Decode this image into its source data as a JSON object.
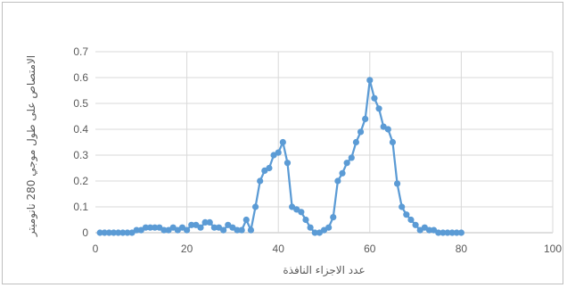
{
  "chart_data": {
    "type": "line",
    "title": "",
    "xlabel": "عدد الاجزاء النافذة",
    "ylabel": "الامتصاص على طول موجي 280 نانوميتر",
    "xlim": [
      0,
      100
    ],
    "ylim": [
      0,
      0.7
    ],
    "xticks": [
      "0",
      "20",
      "40",
      "60",
      "80",
      "100"
    ],
    "yticks": [
      "0",
      "0.1",
      "0.2",
      "0.3",
      "0.4",
      "0.5",
      "0.6",
      "0.7"
    ],
    "xtick_values": [
      0,
      20,
      40,
      60,
      80,
      100
    ],
    "ytick_values": [
      0,
      0.1,
      0.2,
      0.3,
      0.4,
      0.5,
      0.6,
      0.7
    ],
    "grid": true,
    "legend": "none",
    "series": [
      {
        "color": "#5b9bd5",
        "x": [
          1,
          2,
          3,
          4,
          5,
          6,
          7,
          8,
          9,
          10,
          11,
          12,
          13,
          14,
          15,
          16,
          17,
          18,
          19,
          20,
          21,
          22,
          23,
          24,
          25,
          26,
          27,
          28,
          29,
          30,
          31,
          32,
          33,
          34,
          35,
          36,
          37,
          38,
          39,
          40,
          41,
          42,
          43,
          44,
          45,
          46,
          47,
          48,
          49,
          50,
          51,
          52,
          53,
          54,
          55,
          56,
          57,
          58,
          59,
          60,
          61,
          62,
          63,
          64,
          65,
          66,
          67,
          68,
          69,
          70,
          71,
          72,
          73,
          74,
          75,
          76,
          77,
          78,
          79,
          80
        ],
        "y": [
          0,
          0,
          0,
          0,
          0,
          0,
          0,
          0,
          0.01,
          0.01,
          0.02,
          0.02,
          0.02,
          0.02,
          0.01,
          0.01,
          0.02,
          0.01,
          0.02,
          0.01,
          0.03,
          0.03,
          0.02,
          0.04,
          0.04,
          0.02,
          0.02,
          0.01,
          0.03,
          0.02,
          0.01,
          0.01,
          0.05,
          0.01,
          0.1,
          0.2,
          0.24,
          0.25,
          0.3,
          0.31,
          0.35,
          0.27,
          0.1,
          0.09,
          0.08,
          0.05,
          0.02,
          0,
          0,
          0.01,
          0.02,
          0.06,
          0.2,
          0.23,
          0.27,
          0.29,
          0.35,
          0.39,
          0.44,
          0.59,
          0.52,
          0.48,
          0.41,
          0.4,
          0.35,
          0.19,
          0.1,
          0.07,
          0.05,
          0.03,
          0.01,
          0.02,
          0.01,
          0.01,
          0,
          0,
          0,
          0,
          0,
          0
        ]
      }
    ]
  }
}
